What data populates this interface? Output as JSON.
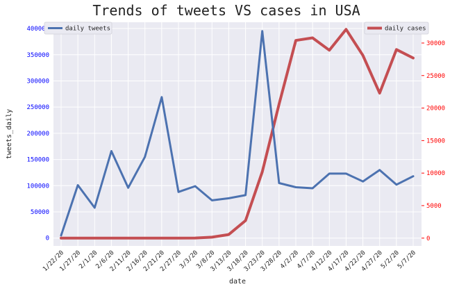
{
  "chart_data": {
    "type": "line",
    "title": "Trends of tweets VS cases in USA",
    "xlabel": "date",
    "ylabel": "tweets_daily",
    "ylabel_right": "",
    "categories": [
      "1/22/20",
      "1/27/20",
      "2/1/20",
      "2/6/20",
      "2/11/20",
      "2/16/20",
      "2/21/20",
      "2/27/20",
      "3/3/20",
      "3/8/20",
      "3/13/20",
      "3/18/20",
      "3/23/20",
      "3/28/20",
      "4/2/20",
      "4/7/20",
      "4/12/20",
      "4/17/20",
      "4/22/20",
      "4/27/20",
      "5/2/20",
      "5/7/20"
    ],
    "yticks_left": [
      "0",
      "50000",
      "100000",
      "150000",
      "200000",
      "250000",
      "300000",
      "350000",
      "400000"
    ],
    "yticks_right": [
      "0",
      "5000",
      "10000",
      "15000",
      "20000",
      "25000",
      "30000"
    ],
    "ylim_left": [
      -15000,
      412000
    ],
    "ylim_right": [
      -1200,
      33200
    ],
    "grid": true,
    "series": [
      {
        "name": "daily tweets",
        "axis": "left",
        "color": "#4c72b0",
        "values": [
          5000,
          101000,
          58000,
          166000,
          96000,
          155000,
          269000,
          88000,
          99000,
          72000,
          76000,
          82000,
          395000,
          105000,
          97000,
          95000,
          123000,
          123000,
          108000,
          130000,
          102000,
          118000
        ]
      },
      {
        "name": "daily cases",
        "axis": "right",
        "color": "#c44e52",
        "values": [
          0,
          0,
          0,
          0,
          0,
          0,
          0,
          0,
          20,
          150,
          550,
          2700,
          10200,
          20600,
          30400,
          30800,
          28900,
          32100,
          28100,
          22300,
          29000,
          27700
        ]
      }
    ],
    "legends": [
      {
        "series": 0,
        "placement": "top-left"
      },
      {
        "series": 1,
        "placement": "top-right"
      }
    ],
    "colors": {
      "background": "#eaeaf2",
      "grid": "#ffffff",
      "left_tick": "#0000ff",
      "right_tick": "#ff0000"
    }
  }
}
